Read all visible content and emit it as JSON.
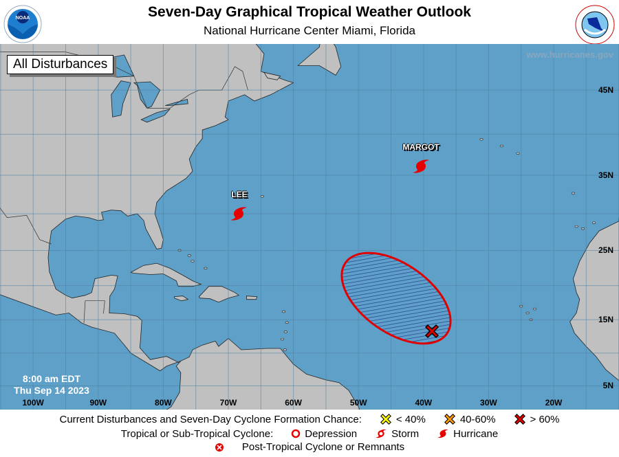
{
  "header": {
    "title": "Seven-Day Graphical Tropical Weather Outlook",
    "subtitle": "National Hurricane Center  Miami, Florida",
    "left_logo": "noaa-logo",
    "right_logo": "national-weather-service-logo"
  },
  "map": {
    "view_label": "All Disturbances",
    "watermark": "www.hurricanes.gov",
    "time": "8:00 am EDT",
    "date": "Thu Sep 14 2023",
    "lon_labels": [
      "100W",
      "90W",
      "80W",
      "70W",
      "60W",
      "50W",
      "40W",
      "30W",
      "20W"
    ],
    "lat_labels": [
      "45N",
      "35N",
      "25N",
      "15N",
      "5N"
    ],
    "colors": {
      "ocean": "#5fa0c8",
      "land": "#c0c0c0",
      "area_outline": "#e00000",
      "hatch": "#1c3c86",
      "marker_high": "#e00000"
    },
    "storms": [
      {
        "name": "LEE",
        "type": "Hurricane"
      },
      {
        "name": "MARGOT",
        "type": "Hurricane"
      }
    ],
    "disturbance": {
      "formation_chance": "> 60%",
      "marker": "red-x"
    }
  },
  "legend": {
    "formation_heading": "Current Disturbances and Seven-Day Cyclone Formation Chance:",
    "low": "< 40%",
    "medium": "40-60%",
    "high": "> 60%",
    "cyclone_heading": "Tropical or Sub-Tropical Cyclone:",
    "depression": "Depression",
    "storm": "Storm",
    "hurricane": "Hurricane",
    "post_tropical": "Post-Tropical Cyclone or Remnants"
  }
}
